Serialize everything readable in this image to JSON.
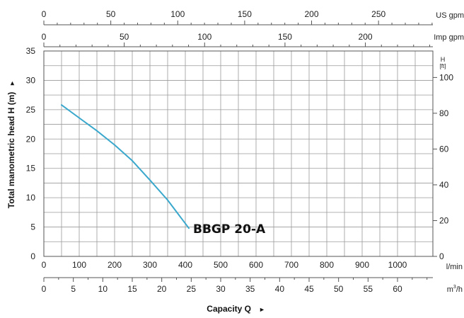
{
  "chart_data": {
    "type": "line",
    "title": "",
    "xlabel": "Capacity Q",
    "xlabel_arrow": "►",
    "ylabel": "Total manometric head H (m)",
    "ylabel_arrow": "►",
    "grid": true,
    "x_primary": {
      "unit": "l/min",
      "range": [
        0,
        1100
      ],
      "ticks": [
        0,
        100,
        200,
        300,
        400,
        500,
        600,
        700,
        800,
        900,
        1000
      ]
    },
    "x_m3h": {
      "unit_base": "m",
      "unit_sup": "3",
      "unit_tail": "/h",
      "range": [
        0,
        66
      ],
      "ticks": [
        0,
        5,
        10,
        15,
        20,
        25,
        30,
        35,
        40,
        45,
        50,
        55,
        60
      ]
    },
    "x_us_gpm": {
      "unit": "US gpm",
      "range": [
        0,
        290.6
      ],
      "ticks": [
        0,
        50,
        100,
        150,
        200,
        250
      ]
    },
    "x_imp_gpm": {
      "unit": "Imp gpm",
      "range": [
        0,
        242
      ],
      "ticks": [
        0,
        50,
        100,
        150,
        200
      ]
    },
    "y_left": {
      "unit": "",
      "range": [
        0,
        35
      ],
      "ticks": [
        0,
        5,
        10,
        15,
        20,
        25,
        30,
        35
      ]
    },
    "y_right": {
      "unit_line1": "H",
      "unit_line2": "[ft]",
      "range": [
        0,
        114.8
      ],
      "ticks": [
        0,
        20,
        40,
        60,
        80,
        100
      ]
    },
    "series": [
      {
        "name": "BBGP 20-A",
        "color": "#3aa8cc",
        "x": [
          50,
          100,
          150,
          200,
          250,
          300,
          350,
          410
        ],
        "y": [
          25.8,
          23.6,
          21.4,
          19.0,
          16.3,
          13.0,
          9.6,
          4.8
        ]
      }
    ]
  }
}
